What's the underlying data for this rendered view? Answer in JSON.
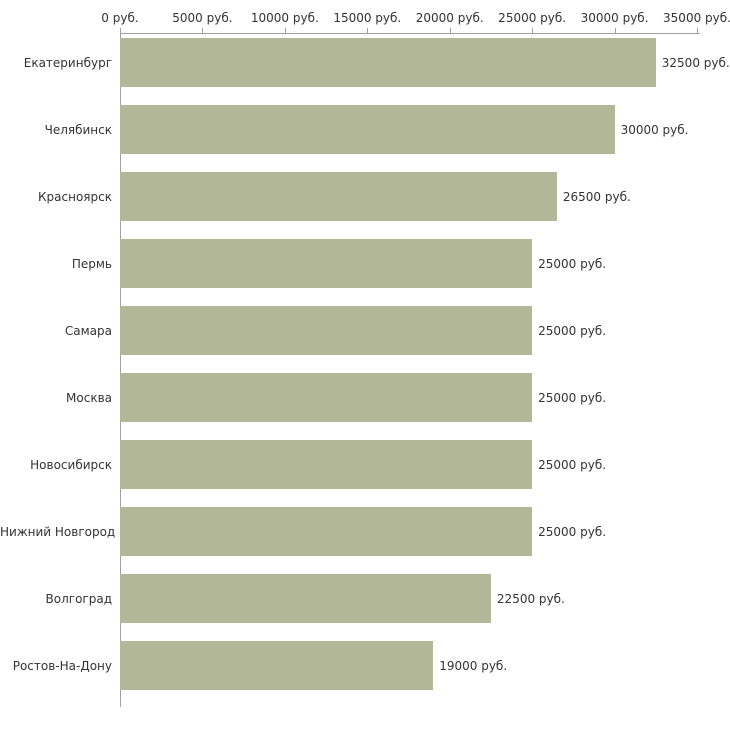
{
  "chart_data": {
    "type": "bar",
    "orientation": "horizontal",
    "title": "",
    "categories": [
      "Екатеринбург",
      "Челябинск",
      "Красноярск",
      "Пермь",
      "Самара",
      "Москва",
      "Новосибирск",
      "Нижний Новгород",
      "Волгоград",
      "Ростов-На-Дону"
    ],
    "values": [
      32500,
      30000,
      26500,
      25000,
      25000,
      25000,
      25000,
      25000,
      22500,
      19000
    ],
    "value_labels": [
      "32500 руб.",
      "30000 руб.",
      "26500 руб.",
      "25000 руб.",
      "25000 руб.",
      "25000 руб.",
      "25000 руб.",
      "25000 руб.",
      "22500 руб.",
      "19000 руб."
    ],
    "x_ticks": [
      0,
      5000,
      10000,
      15000,
      20000,
      25000,
      30000,
      35000
    ],
    "x_tick_labels": [
      "0 руб.",
      "5000 руб.",
      "10000 руб.",
      "15000 руб.",
      "20000 руб.",
      "25000 руб.",
      "30000 руб.",
      "35000 руб."
    ],
    "xlim": [
      0,
      35000
    ],
    "grid": false,
    "legend": false,
    "tick_position": "top",
    "bar_color": "#b2b897",
    "axis_color": "#a0a0a0",
    "text_color": "#333333"
  }
}
